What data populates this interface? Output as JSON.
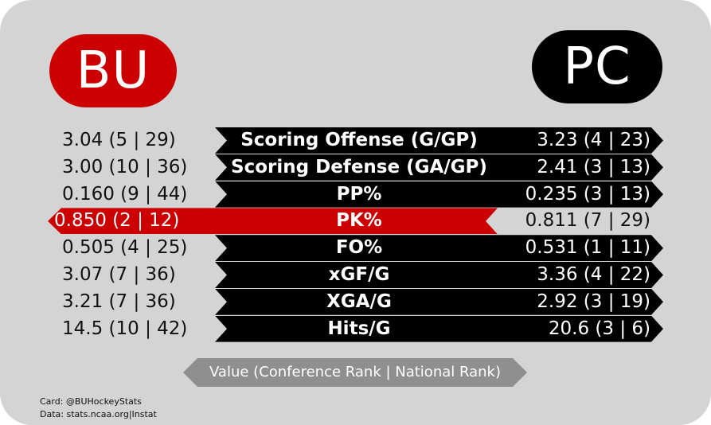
{
  "teams": {
    "left": "BU",
    "right": "PC"
  },
  "colors": {
    "left_team": "#cc0000",
    "right_team": "#000000",
    "card_bg": "#d4d4d4",
    "legend_bg": "#8f8f8f"
  },
  "stats": [
    {
      "left": "3.04 (5 | 29)",
      "label": "Scoring Offense (G/GP)",
      "right": "3.23 (4 | 23)",
      "leader": "right"
    },
    {
      "left": "3.00 (10 | 36)",
      "label": "Scoring Defense (GA/GP)",
      "right": "2.41 (3 | 13)",
      "leader": "right"
    },
    {
      "left": "0.160 (9 | 44)",
      "label": "PP%",
      "right": "0.235 (3 | 13)",
      "leader": "right"
    },
    {
      "left": "0.850 (2 | 12)",
      "label": "PK%",
      "right": "0.811 (7 | 29)",
      "leader": "left"
    },
    {
      "left": "0.505 (4 | 25)",
      "label": "FO%",
      "right": "0.531 (1 | 11)",
      "leader": "right"
    },
    {
      "left": "3.07 (7 | 36)",
      "label": "xGF/G",
      "right": "3.36 (4 | 22)",
      "leader": "right"
    },
    {
      "left": "3.21 (7 | 36)",
      "label": "XGA/G",
      "right": "2.92 (3 | 19)",
      "leader": "right"
    },
    {
      "left": "14.5 (10 | 42)",
      "label": "Hits/G",
      "right": "20.6 (3 | 6)",
      "leader": "right"
    }
  ],
  "legend": "Value (Conference Rank | National Rank)",
  "credits": {
    "card": "Card: @BUHockeyStats",
    "data": "Data: stats.ncaa.org|Instat"
  }
}
